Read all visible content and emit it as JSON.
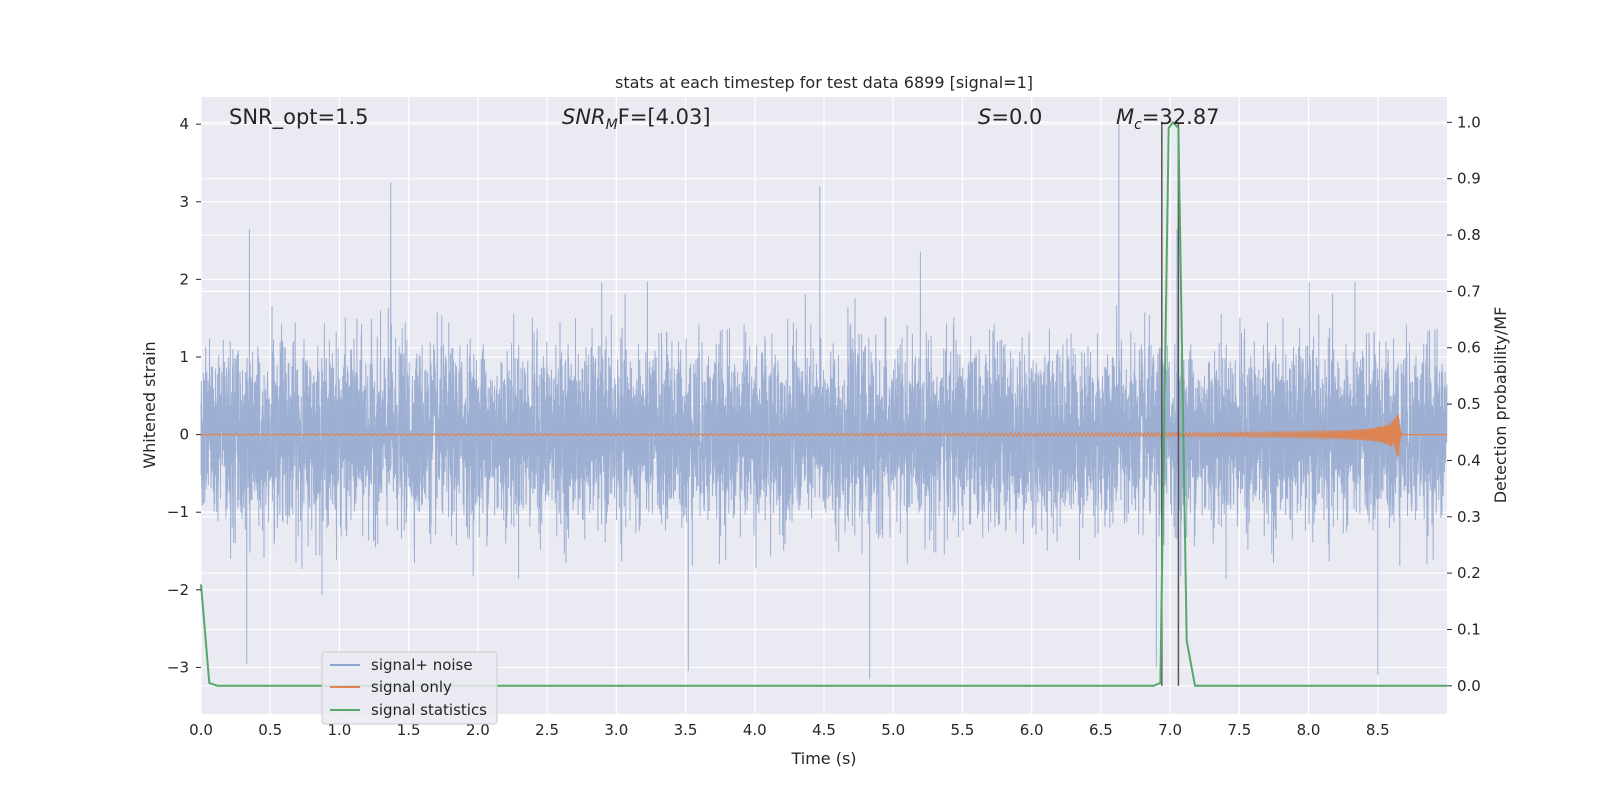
{
  "chart_data": {
    "type": "line",
    "title": "stats at each timestep for test data 6899 [signal=1]",
    "xlabel": "Time (s)",
    "ylabel_left": "Whitened strain",
    "ylabel_right": "Detection probability/MF",
    "xlim": [
      0.0,
      9.0
    ],
    "ylim_left": [
      -3.6,
      4.35
    ],
    "ylim_right": [
      -0.05,
      1.045
    ],
    "x_ticks": [
      "0.0",
      "0.5",
      "1.0",
      "1.5",
      "2.0",
      "2.5",
      "3.0",
      "3.5",
      "4.0",
      "4.5",
      "5.0",
      "5.5",
      "6.0",
      "6.5",
      "7.0",
      "7.5",
      "8.0",
      "8.5"
    ],
    "y_ticks_left": [
      "−3",
      "−2",
      "−1",
      "0",
      "1",
      "2",
      "3",
      "4"
    ],
    "y_ticks_right": [
      "0.0",
      "0.1",
      "0.2",
      "0.3",
      "0.4",
      "0.5",
      "0.6",
      "0.7",
      "0.8",
      "0.9",
      "1.0"
    ],
    "grid": true,
    "legend": {
      "position": "lower-left",
      "entries": [
        "signal+ noise",
        "signal only",
        "signal statistics"
      ]
    },
    "annotations": {
      "snr_opt": "SNR_opt=1.5",
      "snr_mf_symbol": "SNR",
      "snr_mf_sub": "M",
      "snr_mf_rest": "F=[4.03]",
      "s_symbol": "S",
      "s_rest": "=0.0",
      "mc_symbol": "M",
      "mc_sub": "c",
      "mc_rest": "=32.87"
    },
    "vertical_markers_x": [
      6.94,
      7.06
    ],
    "series": [
      {
        "name": "signal+ noise",
        "color": "#8fa4cc",
        "kind": "noise",
        "sample_rate_hz": 1024,
        "t_range": [
          0.0,
          9.0
        ],
        "std": 0.55,
        "peaks": [
          [
            0.33,
            2.85
          ],
          [
            0.35,
            2.65
          ],
          [
            1.37,
            3.25
          ],
          [
            4.47,
            3.2
          ],
          [
            6.63,
            4.0
          ],
          [
            8.5,
            -3.1
          ],
          [
            4.83,
            -3.15
          ],
          [
            3.52,
            -3.05
          ],
          [
            0.33,
            -2.95
          ],
          [
            7.05,
            2.65
          ],
          [
            6.9,
            -3.0
          ]
        ]
      },
      {
        "name": "signal only",
        "color": "#dd8452",
        "kind": "chirp",
        "t_merger": 8.65,
        "peak_amplitude": 0.35
      },
      {
        "name": "signal statistics",
        "color": "#55a868",
        "kind": "line",
        "x": [
          0.0,
          0.06,
          0.12,
          6.88,
          6.93,
          6.94,
          6.99,
          7.02,
          7.06,
          7.12,
          7.18,
          9.0
        ],
        "y": [
          0.18,
          0.005,
          0.0,
          0.0,
          0.005,
          0.18,
          0.99,
          1.0,
          0.99,
          0.08,
          0.0,
          0.0
        ]
      }
    ]
  }
}
